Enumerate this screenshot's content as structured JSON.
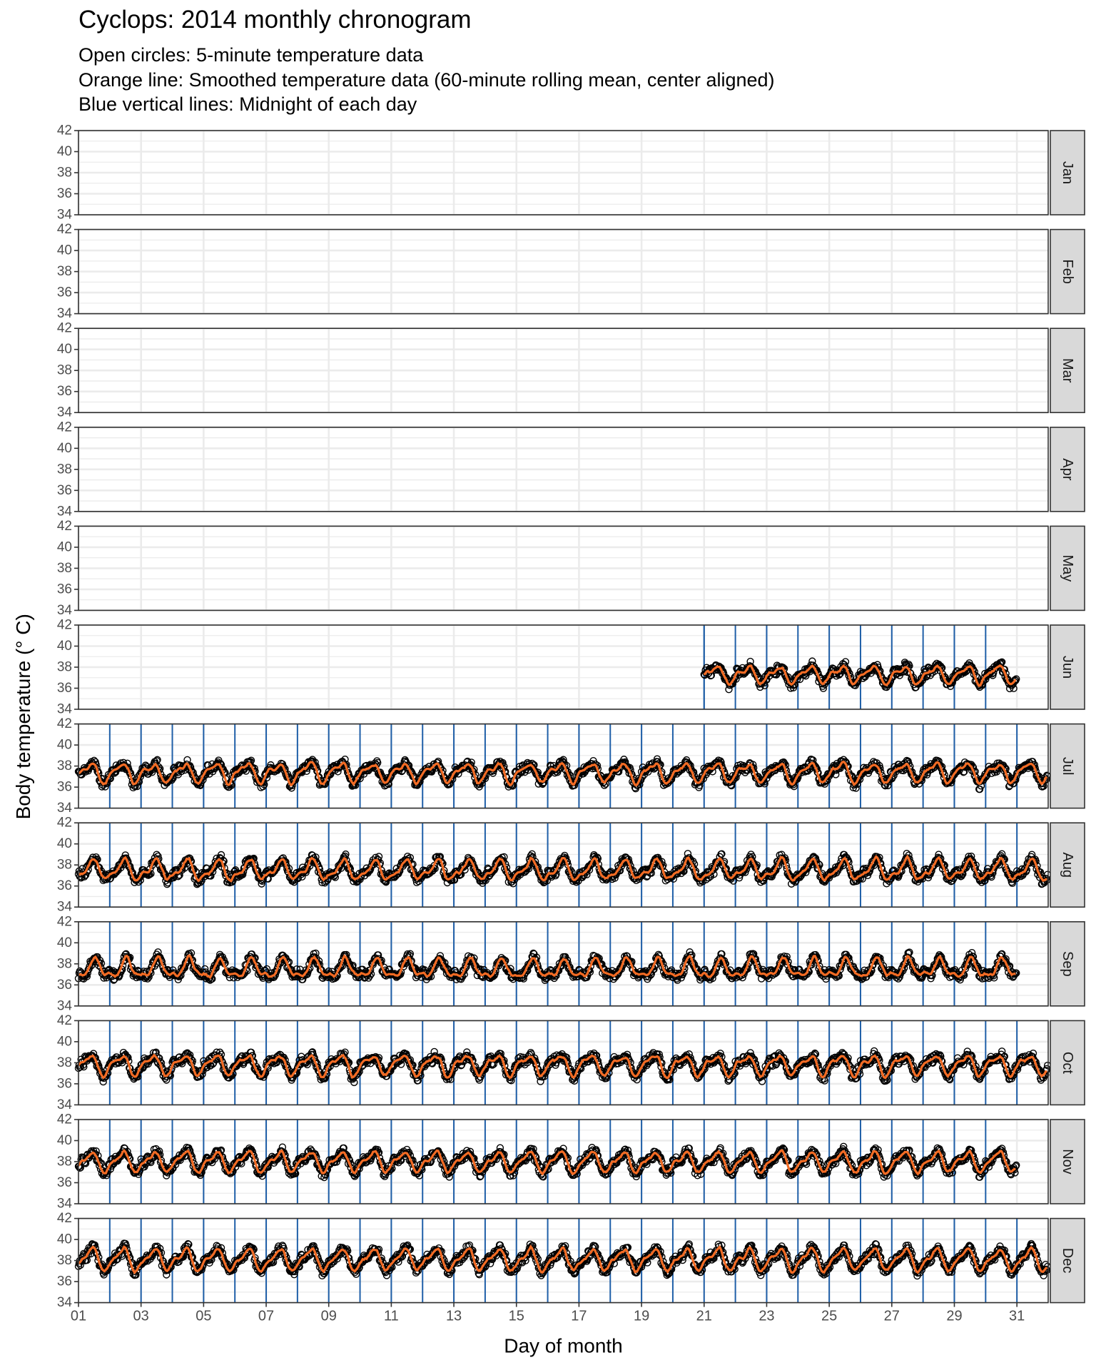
{
  "chart_data": {
    "type": "line",
    "title": "Cyclops: 2014 monthly chronogram",
    "subtitle": [
      "Open circles: 5-minute temperature data",
      "Orange line: Smoothed temperature data (60-minute rolling mean, center aligned)",
      "Blue vertical lines: Midnight of each day"
    ],
    "xlabel": "Day of month",
    "ylabel": "Body temperature (° C)",
    "xlim": [
      1,
      32
    ],
    "ylim": [
      34,
      42
    ],
    "x_ticks": [
      "01",
      "03",
      "05",
      "07",
      "09",
      "11",
      "13",
      "15",
      "17",
      "19",
      "21",
      "23",
      "25",
      "27",
      "29",
      "31"
    ],
    "y_ticks": [
      "34",
      "36",
      "38",
      "40",
      "42"
    ],
    "grid": true,
    "legend": "none",
    "colors": {
      "smoothed": "#f26b24",
      "points": "#000000",
      "midnight": "#1f5fa8",
      "strip": "#d9d9d9",
      "grid": "#ebebeb"
    },
    "panels": [
      {
        "month": "Jan",
        "start_day": null,
        "end_day": null,
        "baseline": null
      },
      {
        "month": "Feb",
        "start_day": null,
        "end_day": null,
        "baseline": null
      },
      {
        "month": "Mar",
        "start_day": null,
        "end_day": null,
        "baseline": null
      },
      {
        "month": "Apr",
        "start_day": null,
        "end_day": null,
        "baseline": null
      },
      {
        "month": "May",
        "start_day": null,
        "end_day": null,
        "baseline": null
      },
      {
        "month": "Jun",
        "start_day": 21,
        "end_day": 31,
        "baseline": 37.3,
        "amplitude": 0.7,
        "min": 35.8,
        "max": 38.9
      },
      {
        "month": "Jul",
        "start_day": 1,
        "end_day": 32,
        "baseline": 37.4,
        "amplitude": 0.8,
        "min": 35.6,
        "max": 39.0
      },
      {
        "month": "Aug",
        "start_day": 1,
        "end_day": 32,
        "baseline": 37.5,
        "amplitude": 0.85,
        "min": 36.0,
        "max": 39.1
      },
      {
        "month": "Sep",
        "start_day": 1,
        "end_day": 31,
        "baseline": 37.5,
        "amplitude": 0.8,
        "min": 36.0,
        "max": 39.1
      },
      {
        "month": "Oct",
        "start_day": 1,
        "end_day": 32,
        "baseline": 37.8,
        "amplitude": 0.85,
        "min": 36.0,
        "max": 39.4
      },
      {
        "month": "Nov",
        "start_day": 1,
        "end_day": 31,
        "baseline": 38.0,
        "amplitude": 0.85,
        "min": 36.8,
        "max": 40.0
      },
      {
        "month": "Dec",
        "start_day": 1,
        "end_day": 32,
        "baseline": 38.1,
        "amplitude": 0.9,
        "min": 36.8,
        "max": 39.8
      }
    ]
  }
}
